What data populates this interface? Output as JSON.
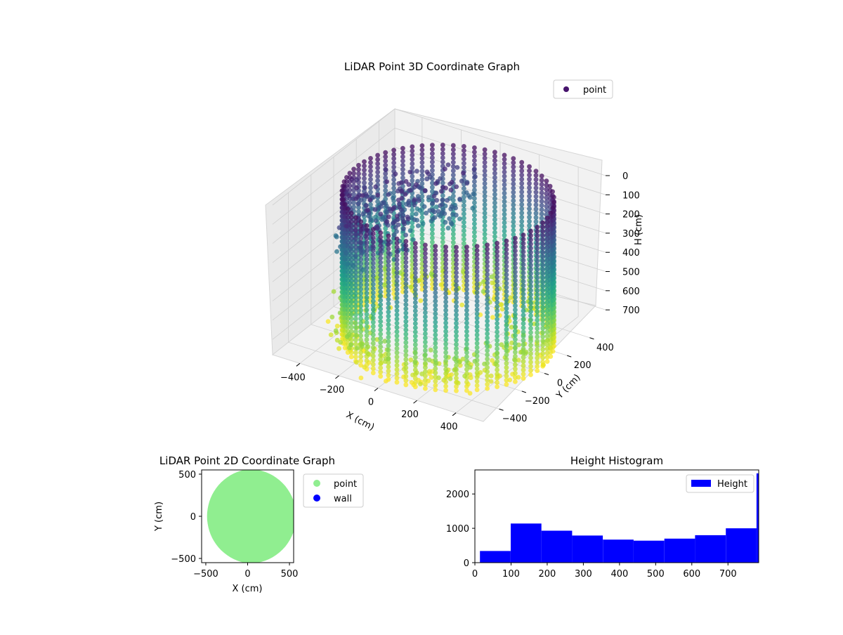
{
  "chart_data": [
    {
      "type": "scatter3d",
      "title": "LiDAR Point 3D Coordinate Graph",
      "xlabel": "X (cm)",
      "ylabel": "Y (cm)",
      "zlabel": "H (cm)",
      "xticks": [
        -400,
        -200,
        0,
        200,
        400
      ],
      "yticks": [
        -400,
        -200,
        0,
        200,
        400
      ],
      "zticks": [
        0,
        100,
        200,
        300,
        400,
        500,
        600,
        700
      ],
      "xlim": [
        -540,
        540
      ],
      "ylim": [
        -540,
        540
      ],
      "zlim": [
        780,
        0
      ],
      "zaxis_inverted": true,
      "colormap": "viridis",
      "legend": {
        "label": "point",
        "placement": "upper-right",
        "color": "#46136c"
      },
      "series": [
        {
          "name": "point"
        }
      ]
    },
    {
      "type": "scatter",
      "title": "LiDAR Point 2D Coordinate Graph",
      "xlabel": "X (cm)",
      "ylabel": "Y (cm)",
      "xticks": [
        -500,
        0,
        500
      ],
      "yticks": [
        -500,
        0,
        500
      ],
      "xlim": [
        -550,
        550
      ],
      "ylim": [
        -550,
        550
      ],
      "legend_placement": "outside-right",
      "series": [
        {
          "name": "point",
          "color": "#90ee90",
          "region": "disc of radius ~550 cm, slightly flattened on the left",
          "count": 0
        },
        {
          "name": "wall",
          "color": "#0000ff",
          "count": 0
        }
      ]
    },
    {
      "type": "bar",
      "title": "Height Histogram",
      "xticks": [
        0,
        100,
        200,
        300,
        400,
        500,
        600,
        700
      ],
      "yticks": [
        0,
        1000,
        2000
      ],
      "xlim": [
        0,
        785
      ],
      "ylim": [
        0,
        2700
      ],
      "legend": {
        "label": "Height",
        "placement": "upper-right",
        "color": "#0000ff"
      },
      "series": [
        {
          "name": "Height",
          "color": "#0000ff",
          "bins": [
            {
              "x0": 14,
              "x1": 99,
              "count": 340
            },
            {
              "x0": 99,
              "x1": 184,
              "count": 1140
            },
            {
              "x0": 184,
              "x1": 269,
              "count": 930
            },
            {
              "x0": 269,
              "x1": 354,
              "count": 790
            },
            {
              "x0": 354,
              "x1": 439,
              "count": 670
            },
            {
              "x0": 439,
              "x1": 524,
              "count": 640
            },
            {
              "x0": 524,
              "x1": 609,
              "count": 700
            },
            {
              "x0": 609,
              "x1": 694,
              "count": 800
            },
            {
              "x0": 694,
              "x1": 779,
              "count": 1000
            },
            {
              "x0": 779,
              "x1": 785,
              "count": 2600
            }
          ]
        }
      ]
    }
  ]
}
